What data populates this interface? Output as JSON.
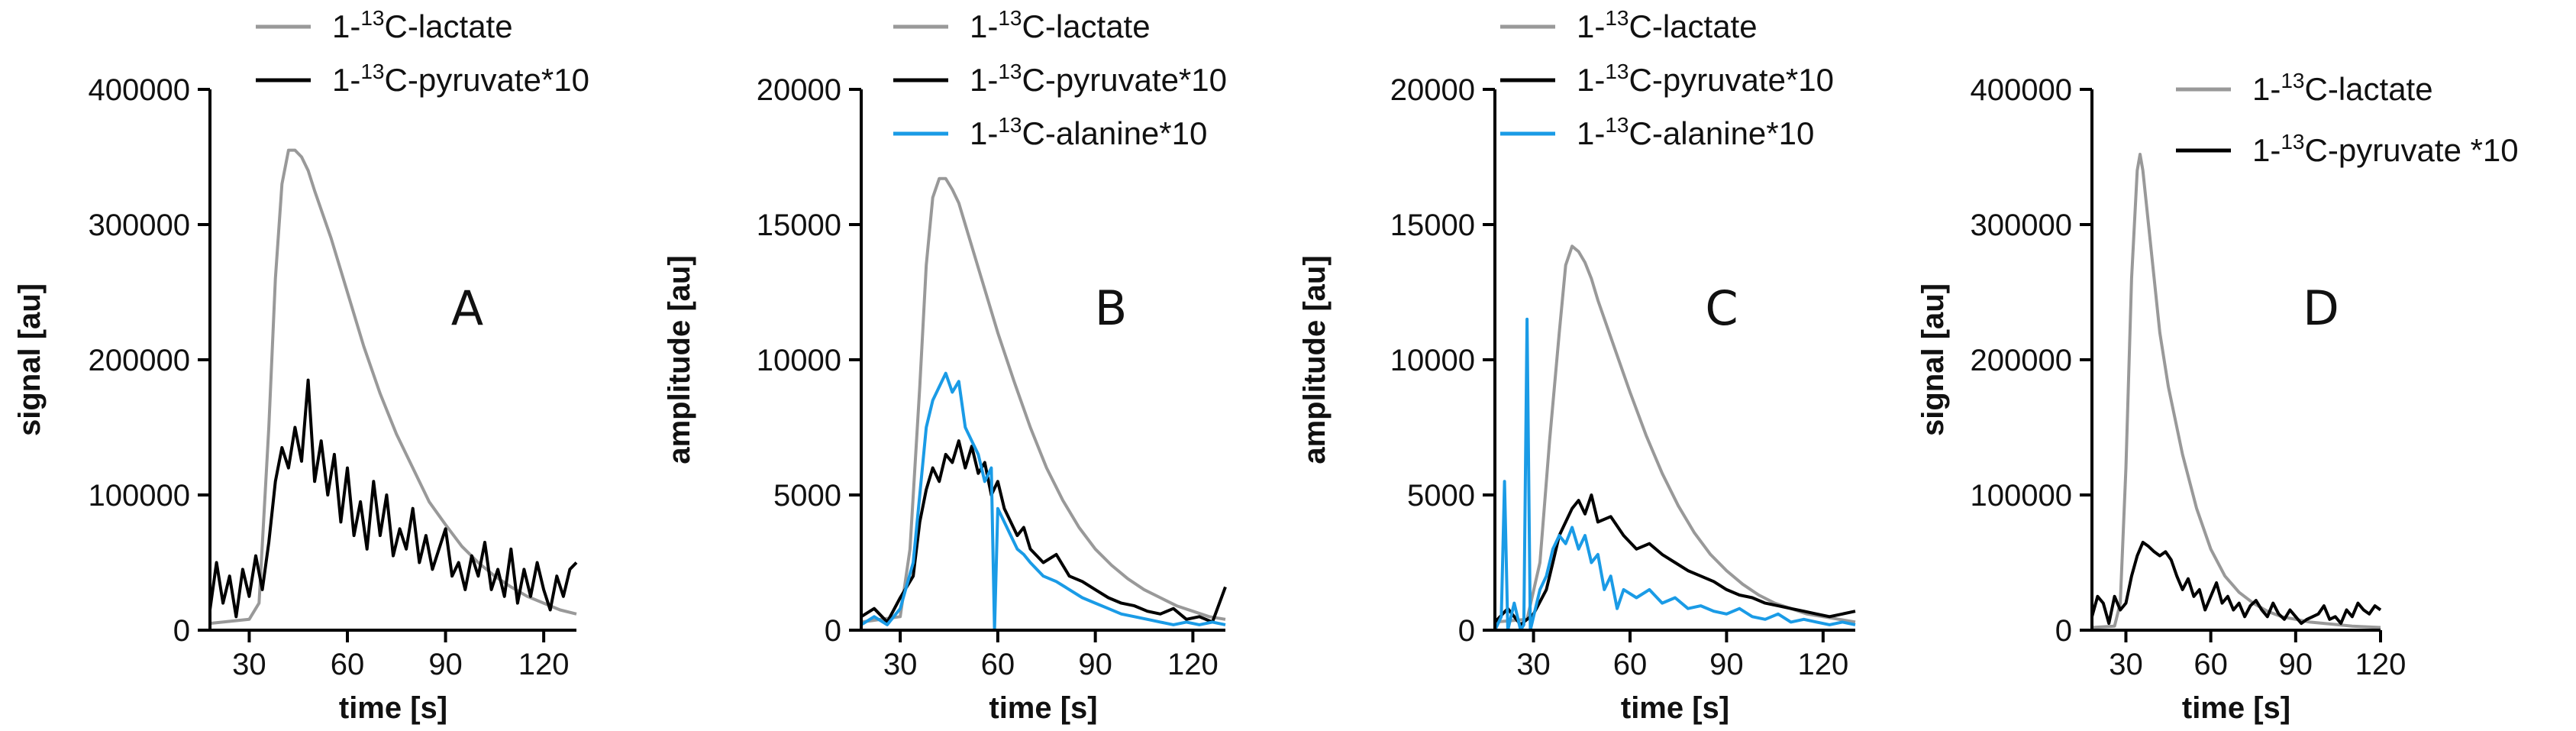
{
  "chart_data": [
    {
      "type": "line",
      "panel": "A",
      "xlabel": "time [s]",
      "ylabel": "signal [au]",
      "xlim": [
        18,
        130
      ],
      "ylim": [
        0,
        400000
      ],
      "xticks": [
        30,
        60,
        90,
        120
      ],
      "yticks": [
        0,
        100000,
        200000,
        300000,
        400000
      ],
      "series": [
        {
          "name": "1-13C-lactate",
          "legend_sup": "13",
          "legend_pre": "1-",
          "legend_post": "C-lactate",
          "color": "#999999",
          "x": [
            18,
            30,
            33,
            36,
            38,
            40,
            42,
            44,
            46,
            48,
            50,
            55,
            60,
            65,
            70,
            75,
            80,
            85,
            90,
            95,
            100,
            105,
            110,
            115,
            120,
            125,
            130
          ],
          "y": [
            5000,
            8000,
            20000,
            150000,
            260000,
            330000,
            355000,
            355000,
            350000,
            340000,
            325000,
            290000,
            250000,
            210000,
            175000,
            145000,
            120000,
            95000,
            78000,
            62000,
            50000,
            40000,
            32000,
            25000,
            20000,
            15000,
            12000
          ]
        },
        {
          "name": "1-13C-pyruvate*10",
          "legend_sup": "13",
          "legend_pre": "1-",
          "legend_post": "C-pyruvate*10",
          "color": "#000000",
          "x": [
            18,
            20,
            22,
            24,
            26,
            28,
            30,
            32,
            34,
            36,
            38,
            40,
            42,
            44,
            46,
            48,
            50,
            52,
            54,
            56,
            58,
            60,
            62,
            64,
            66,
            68,
            70,
            72,
            74,
            76,
            78,
            80,
            82,
            84,
            86,
            88,
            90,
            92,
            94,
            96,
            98,
            100,
            102,
            104,
            106,
            108,
            110,
            112,
            114,
            116,
            118,
            120,
            122,
            124,
            126,
            128,
            130
          ],
          "y": [
            15000,
            50000,
            20000,
            40000,
            10000,
            45000,
            25000,
            55000,
            30000,
            65000,
            110000,
            135000,
            120000,
            150000,
            125000,
            185000,
            110000,
            140000,
            100000,
            130000,
            80000,
            120000,
            70000,
            95000,
            60000,
            110000,
            70000,
            100000,
            55000,
            75000,
            60000,
            90000,
            50000,
            70000,
            45000,
            60000,
            75000,
            40000,
            50000,
            30000,
            55000,
            40000,
            65000,
            30000,
            45000,
            25000,
            60000,
            20000,
            45000,
            25000,
            50000,
            30000,
            15000,
            40000,
            25000,
            45000,
            50000
          ]
        }
      ],
      "legend": "top"
    },
    {
      "type": "line",
      "panel": "B",
      "xlabel": "time [s]",
      "ylabel": "amplitude [au]",
      "xlim": [
        18,
        130
      ],
      "ylim": [
        0,
        20000
      ],
      "xticks": [
        30,
        60,
        90,
        120
      ],
      "yticks": [
        0,
        5000,
        10000,
        15000,
        20000
      ],
      "series": [
        {
          "name": "1-13C-lactate",
          "legend_sup": "13",
          "legend_pre": "1-",
          "legend_post": "C-lactate",
          "color": "#999999",
          "x": [
            18,
            30,
            33,
            36,
            38,
            40,
            42,
            44,
            46,
            48,
            50,
            55,
            60,
            65,
            70,
            75,
            80,
            85,
            90,
            95,
            100,
            105,
            110,
            115,
            120,
            125,
            130
          ],
          "y": [
            300,
            500,
            3000,
            9000,
            13500,
            16000,
            16700,
            16700,
            16300,
            15800,
            15000,
            13000,
            11000,
            9200,
            7500,
            6000,
            4800,
            3800,
            3000,
            2400,
            1900,
            1500,
            1200,
            900,
            700,
            500,
            400
          ]
        },
        {
          "name": "1-13C-pyruvate*10",
          "legend_sup": "13",
          "legend_pre": "1-",
          "legend_post": "C-pyruvate*10",
          "color": "#000000",
          "x": [
            18,
            22,
            26,
            30,
            34,
            36,
            38,
            40,
            42,
            44,
            46,
            48,
            50,
            52,
            54,
            56,
            58,
            60,
            62,
            64,
            66,
            68,
            70,
            74,
            78,
            82,
            86,
            90,
            94,
            98,
            102,
            106,
            110,
            114,
            118,
            122,
            126,
            130
          ],
          "y": [
            500,
            800,
            300,
            1200,
            2000,
            4000,
            5200,
            6000,
            5500,
            6500,
            6200,
            7000,
            6000,
            6800,
            5800,
            6200,
            5000,
            5500,
            4500,
            4000,
            3500,
            3800,
            3000,
            2500,
            2800,
            2000,
            1800,
            1500,
            1200,
            1000,
            900,
            700,
            600,
            800,
            400,
            500,
            300,
            1600
          ]
        },
        {
          "name": "1-13C-alanine*10",
          "legend_sup": "13",
          "legend_pre": "1-",
          "legend_post": "C-alanine*10",
          "color": "#1a9be6",
          "x": [
            18,
            22,
            26,
            30,
            34,
            36,
            38,
            40,
            42,
            44,
            46,
            48,
            50,
            52,
            54,
            56,
            58,
            59,
            60,
            62,
            64,
            66,
            68,
            70,
            74,
            78,
            82,
            86,
            90,
            94,
            98,
            102,
            106,
            110,
            114,
            118,
            122,
            126,
            130
          ],
          "y": [
            200,
            500,
            200,
            800,
            2500,
            5000,
            7500,
            8500,
            9000,
            9500,
            8800,
            9200,
            7500,
            7000,
            6500,
            5500,
            6000,
            0,
            4500,
            4000,
            3500,
            3000,
            2800,
            2500,
            2000,
            1800,
            1500,
            1200,
            1000,
            800,
            600,
            500,
            400,
            300,
            200,
            300,
            200,
            300,
            200
          ]
        }
      ],
      "legend": "top"
    },
    {
      "type": "line",
      "panel": "C",
      "xlabel": "time [s]",
      "ylabel": "amplitude [au]",
      "xlim": [
        18,
        130
      ],
      "ylim": [
        0,
        20000
      ],
      "xticks": [
        30,
        60,
        90,
        120
      ],
      "yticks": [
        0,
        5000,
        10000,
        15000,
        20000
      ],
      "series": [
        {
          "name": "1-13C-lactate",
          "legend_sup": "13",
          "legend_pre": "1-",
          "legend_post": "C-lactate",
          "color": "#999999",
          "x": [
            18,
            28,
            32,
            35,
            38,
            40,
            42,
            44,
            46,
            48,
            50,
            55,
            60,
            65,
            70,
            75,
            80,
            85,
            90,
            95,
            100,
            105,
            110,
            115,
            120,
            125,
            130
          ],
          "y": [
            300,
            400,
            2500,
            7000,
            11000,
            13500,
            14200,
            14000,
            13600,
            13000,
            12200,
            10500,
            8800,
            7200,
            5800,
            4600,
            3600,
            2800,
            2200,
            1700,
            1300,
            1000,
            800,
            600,
            500,
            400,
            300
          ]
        },
        {
          "name": "1-13C-pyruvate*10",
          "legend_sup": "13",
          "legend_pre": "1-",
          "legend_post": "C-pyruvate*10",
          "color": "#000000",
          "x": [
            18,
            22,
            26,
            30,
            34,
            36,
            38,
            40,
            42,
            44,
            46,
            48,
            50,
            54,
            58,
            62,
            66,
            70,
            74,
            78,
            82,
            86,
            90,
            94,
            98,
            102,
            106,
            110,
            114,
            118,
            122,
            126,
            130
          ],
          "y": [
            300,
            800,
            200,
            600,
            1500,
            2500,
            3500,
            4000,
            4500,
            4800,
            4300,
            5000,
            4000,
            4200,
            3500,
            3000,
            3200,
            2800,
            2500,
            2200,
            2000,
            1800,
            1500,
            1300,
            1200,
            1000,
            900,
            800,
            700,
            600,
            500,
            600,
            700
          ]
        },
        {
          "name": "1-13C-alanine*10",
          "legend_sup": "13",
          "legend_pre": "1-",
          "legend_post": "C-alanine*10",
          "color": "#1a9be6",
          "x": [
            18,
            20,
            21,
            22,
            24,
            26,
            27,
            28,
            29,
            30,
            32,
            34,
            36,
            38,
            40,
            42,
            44,
            46,
            48,
            50,
            52,
            54,
            56,
            58,
            62,
            66,
            70,
            74,
            78,
            82,
            86,
            90,
            94,
            98,
            102,
            106,
            110,
            114,
            118,
            122,
            126,
            130
          ],
          "y": [
            0,
            500,
            5500,
            0,
            1000,
            0,
            200,
            11500,
            0,
            500,
            1500,
            2000,
            3000,
            3500,
            3200,
            3800,
            3000,
            3500,
            2500,
            2800,
            1500,
            2000,
            800,
            1500,
            1200,
            1500,
            1000,
            1200,
            800,
            900,
            700,
            600,
            800,
            500,
            400,
            600,
            300,
            400,
            300,
            200,
            300,
            200
          ]
        }
      ],
      "legend": "top"
    },
    {
      "type": "line",
      "panel": "D",
      "xlabel": "time [s]",
      "ylabel": "signal [au]",
      "xlim": [
        18,
        120
      ],
      "ylim": [
        0,
        400000
      ],
      "xticks": [
        30,
        60,
        90,
        120
      ],
      "yticks": [
        0,
        100000,
        200000,
        300000,
        400000
      ],
      "series": [
        {
          "name": "1-13C-lactate",
          "legend_sup": "13",
          "legend_pre": "1-",
          "legend_post": "C-lactate",
          "color": "#999999",
          "x": [
            18,
            26,
            28,
            30,
            32,
            34,
            35,
            36,
            38,
            40,
            42,
            45,
            50,
            55,
            60,
            65,
            70,
            75,
            80,
            85,
            90,
            95,
            100,
            105,
            110,
            115,
            120
          ],
          "y": [
            2000,
            3000,
            20000,
            120000,
            260000,
            340000,
            352000,
            340000,
            300000,
            260000,
            220000,
            180000,
            130000,
            90000,
            60000,
            40000,
            28000,
            20000,
            14000,
            10000,
            8000,
            6000,
            5000,
            4000,
            3000,
            2500,
            2000
          ]
        },
        {
          "name": "1-13C-pyruvate *10",
          "legend_sup": "13",
          "legend_pre": "1-",
          "legend_post": "C-pyruvate *10",
          "color": "#000000",
          "x": [
            18,
            20,
            22,
            24,
            26,
            28,
            30,
            32,
            34,
            36,
            38,
            40,
            42,
            44,
            46,
            48,
            50,
            52,
            54,
            56,
            58,
            60,
            62,
            64,
            66,
            68,
            70,
            72,
            74,
            76,
            78,
            80,
            82,
            84,
            86,
            88,
            90,
            92,
            94,
            96,
            98,
            100,
            102,
            104,
            106,
            108,
            110,
            112,
            114,
            116,
            118,
            120
          ],
          "y": [
            10000,
            25000,
            20000,
            5000,
            25000,
            15000,
            20000,
            40000,
            55000,
            65000,
            62000,
            58000,
            55000,
            58000,
            52000,
            40000,
            30000,
            38000,
            25000,
            30000,
            15000,
            25000,
            35000,
            20000,
            25000,
            15000,
            20000,
            10000,
            18000,
            22000,
            15000,
            10000,
            20000,
            12000,
            8000,
            15000,
            10000,
            5000,
            8000,
            10000,
            12000,
            18000,
            8000,
            10000,
            5000,
            15000,
            10000,
            20000,
            15000,
            12000,
            18000,
            15000
          ]
        }
      ],
      "legend": "top"
    }
  ]
}
